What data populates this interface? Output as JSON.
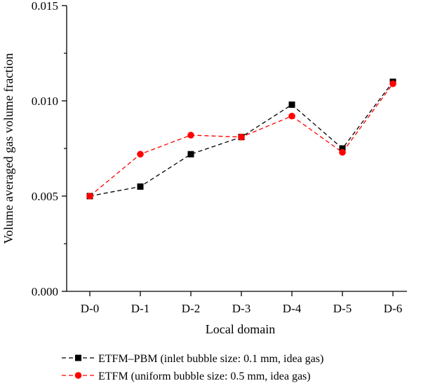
{
  "chart_data": {
    "type": "line",
    "title": "",
    "xlabel": "Local domain",
    "ylabel": "Volume averaged gas volume fraction",
    "categories": [
      "D-0",
      "D-1",
      "D-2",
      "D-3",
      "D-4",
      "D-5",
      "D-6"
    ],
    "ylim": [
      0,
      0.015
    ],
    "yticks": [
      0.0,
      0.005,
      0.01,
      0.015
    ],
    "ytick_labels": [
      "0.000",
      "0.005",
      "0.010",
      "0.015"
    ],
    "grid": false,
    "legend_position": "bottom",
    "series": [
      {
        "name": "ETFM–PBM (inlet bubble size: 0.1 mm, idea gas)",
        "color": "#000000",
        "marker": "square",
        "line_style": "dashed",
        "values": [
          0.005,
          0.0055,
          0.0072,
          0.0081,
          0.0098,
          0.0075,
          0.011
        ]
      },
      {
        "name": "ETFM (uniform bubble size: 0.5 mm, idea gas)",
        "color": "#ff0000",
        "marker": "circle",
        "line_style": "dashed",
        "values": [
          0.005,
          0.0072,
          0.0082,
          0.0081,
          0.0092,
          0.0073,
          0.0109
        ]
      }
    ]
  }
}
